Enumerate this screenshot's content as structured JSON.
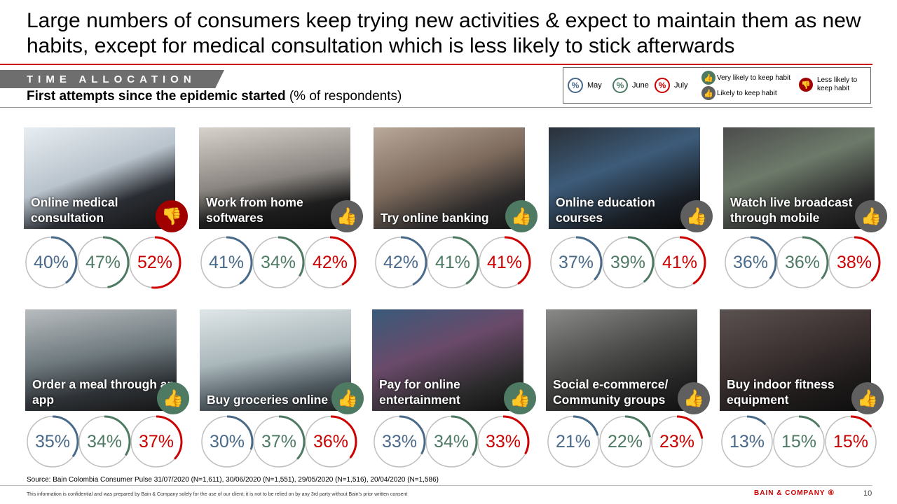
{
  "title": "Large numbers of consumers keep trying new activities & expect to maintain them as new habits, except for medical consultation which is less likely to stick afterwards",
  "section_tag": "TIME ALLOCATION",
  "subtitle_bold": "First attempts since the epidemic started",
  "subtitle_rest": " (% of respondents)",
  "colors": {
    "may": "#4a6a8a",
    "june": "#4e7a64",
    "july": "#cc0000",
    "very_likely": "#4e7a64",
    "likely": "#5f5f5f",
    "less_likely": "#a00000",
    "ring_bg": "#bfbfbf"
  },
  "legend": {
    "symbol": "%",
    "may": "May",
    "june": "June",
    "july": "July",
    "very_likely": "Very likely to keep habit",
    "likely": "Likely to keep habit",
    "less_likely": "Less likely to keep habit"
  },
  "activities": [
    {
      "label": "Online medical consultation",
      "habit": "less_likely",
      "may": 40,
      "june": 47,
      "july": 52
    },
    {
      "label": "Work from home softwares",
      "habit": "likely",
      "may": 41,
      "june": 34,
      "july": 42
    },
    {
      "label": "Try online banking",
      "habit": "very_likely",
      "may": 42,
      "june": 41,
      "july": 41
    },
    {
      "label": "Online education courses",
      "habit": "likely",
      "may": 37,
      "june": 39,
      "july": 41
    },
    {
      "label": "Watch live broadcast through mobile",
      "habit": "likely",
      "may": 36,
      "june": 36,
      "july": 38
    },
    {
      "label": "Order a meal through an app",
      "habit": "very_likely",
      "may": 35,
      "june": 34,
      "july": 37
    },
    {
      "label": "Buy groceries online",
      "habit": "very_likely",
      "may": 30,
      "june": 37,
      "july": 36
    },
    {
      "label": "Pay for online entertainment",
      "habit": "very_likely",
      "may": 33,
      "june": 34,
      "july": 33
    },
    {
      "label": "Social e-commerce/ Community groups",
      "habit": "likely",
      "may": 21,
      "june": 22,
      "july": 23
    },
    {
      "label": "Buy indoor fitness equipment",
      "habit": "likely",
      "may": 13,
      "june": 15,
      "july": 15
    }
  ],
  "source": "Source: Bain Colombia Consumer Pulse 31/07/2020 (N=1,611), 30/06/2020 (N=1,551), 29/05/2020 (N=1,516), 20/04/2020 (N=1,586)",
  "confidential": "This information is confidential and was prepared by Bain & Company solely for the use of our client; it is not to be relied on by any 3rd party without Bain's prior written consent",
  "logo": "BAIN & COMPANY",
  "page_number": "10"
}
